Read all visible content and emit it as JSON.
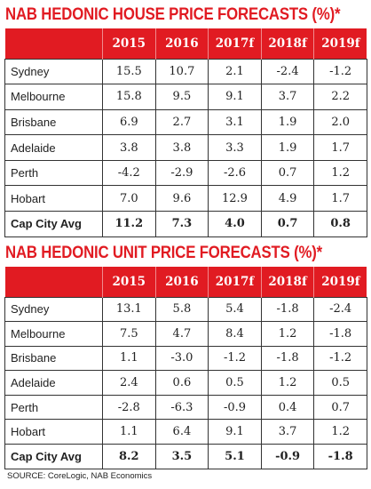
{
  "chart_data": [
    {
      "type": "table",
      "title": "NAB HEDONIC HOUSE PRICE FORECASTS (%)*",
      "columns": [
        "",
        "2015",
        "2016",
        "2017f",
        "2018f",
        "2019f"
      ],
      "rows": [
        {
          "label": "Sydney",
          "values": [
            "15.5",
            "10.7",
            "2.1",
            "-2.4",
            "-1.2"
          ]
        },
        {
          "label": "Melbourne",
          "values": [
            "15.8",
            "9.5",
            "9.1",
            "3.7",
            "2.2"
          ]
        },
        {
          "label": "Brisbane",
          "values": [
            "6.9",
            "2.7",
            "3.1",
            "1.9",
            "2.0"
          ]
        },
        {
          "label": "Adelaide",
          "values": [
            "3.8",
            "3.8",
            "3.3",
            "1.9",
            "1.7"
          ]
        },
        {
          "label": "Perth",
          "values": [
            "-4.2",
            "-2.9",
            "-2.6",
            "0.7",
            "1.2"
          ]
        },
        {
          "label": "Hobart",
          "values": [
            "7.0",
            "9.6",
            "12.9",
            "4.9",
            "1.7"
          ]
        },
        {
          "label": "Cap City Avg",
          "values": [
            "11.2",
            "7.3",
            "4.0",
            "0.7",
            "0.8"
          ],
          "bold": true
        }
      ]
    },
    {
      "type": "table",
      "title": "NAB HEDONIC UNIT PRICE FORECASTS (%)*",
      "columns": [
        "",
        "2015",
        "2016",
        "2017f",
        "2018f",
        "2019f"
      ],
      "rows": [
        {
          "label": "Sydney",
          "values": [
            "13.1",
            "5.8",
            "5.4",
            "-1.8",
            "-2.4"
          ]
        },
        {
          "label": "Melbourne",
          "values": [
            "7.5",
            "4.7",
            "8.4",
            "1.2",
            "-1.8"
          ]
        },
        {
          "label": "Brisbane",
          "values": [
            "1.1",
            "-3.0",
            "-1.2",
            "-1.8",
            "-1.2"
          ]
        },
        {
          "label": "Adelaide",
          "values": [
            "2.4",
            "0.6",
            "0.5",
            "1.2",
            "0.5"
          ]
        },
        {
          "label": "Perth",
          "values": [
            "-2.8",
            "-6.3",
            "-0.9",
            "0.4",
            "0.7"
          ]
        },
        {
          "label": "Hobart",
          "values": [
            "1.1",
            "6.4",
            "9.1",
            "3.7",
            "1.2"
          ]
        },
        {
          "label": "Cap City Avg",
          "values": [
            "8.2",
            "3.5",
            "5.1",
            "-0.9",
            "-1.8"
          ],
          "bold": true
        }
      ]
    }
  ],
  "source": "SOURCE: CoreLogic, NAB Economics",
  "colors": {
    "accent": "#e11b22",
    "header_text": "#ffffff"
  }
}
